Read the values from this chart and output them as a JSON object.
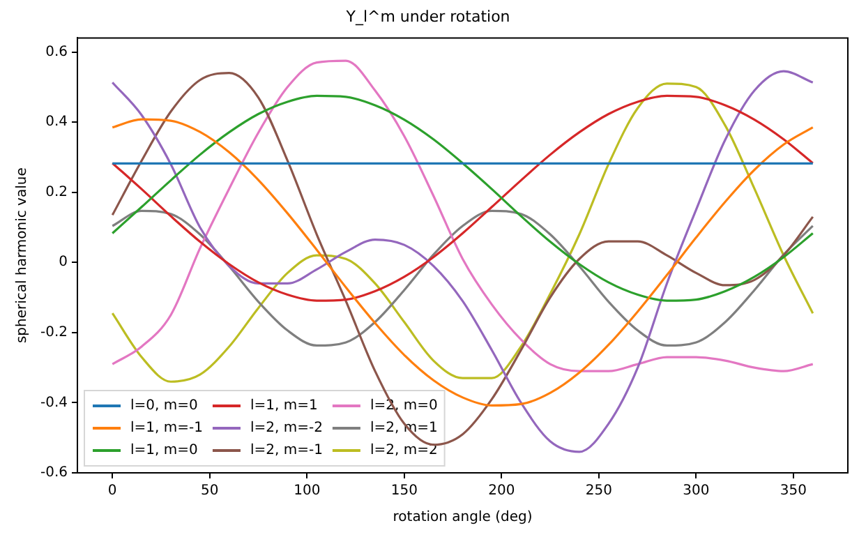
{
  "chart_data": {
    "type": "line",
    "title": "Y_l^m under rotation",
    "xlabel": "rotation angle (deg)",
    "ylabel": "spherical harmonic value",
    "x": [
      0,
      15,
      30,
      45,
      60,
      75,
      90,
      105,
      120,
      135,
      150,
      165,
      180,
      195,
      210,
      225,
      240,
      255,
      270,
      285,
      300,
      315,
      330,
      345,
      360
    ],
    "series": [
      {
        "name": "l=0, m=0",
        "color": "#1f77b4",
        "values": [
          0.282,
          0.282,
          0.282,
          0.282,
          0.282,
          0.282,
          0.282,
          0.282,
          0.282,
          0.282,
          0.282,
          0.282,
          0.282,
          0.282,
          0.282,
          0.282,
          0.282,
          0.282,
          0.282,
          0.282,
          0.282,
          0.282,
          0.282,
          0.282,
          0.282
        ]
      },
      {
        "name": "l=1, m=-1",
        "color": "#ff7f0e",
        "values": [
          0.385,
          0.408,
          0.404,
          0.372,
          0.314,
          0.235,
          0.14,
          0.036,
          -0.071,
          -0.173,
          -0.264,
          -0.336,
          -0.385,
          -0.408,
          -0.404,
          -0.372,
          -0.314,
          -0.235,
          -0.14,
          -0.036,
          0.071,
          0.173,
          0.264,
          0.336,
          0.385
        ]
      },
      {
        "name": "l=1, m=0",
        "color": "#2ca02c",
        "values": [
          0.083,
          0.158,
          0.234,
          0.307,
          0.371,
          0.423,
          0.458,
          0.475,
          0.472,
          0.448,
          0.407,
          0.351,
          0.283,
          0.209,
          0.132,
          0.059,
          -0.005,
          -0.057,
          -0.092,
          -0.109,
          -0.106,
          -0.082,
          -0.041,
          0.015,
          0.083
        ]
      },
      {
        "name": "l=1, m=1",
        "color": "#d62728",
        "values": [
          0.283,
          0.209,
          0.132,
          0.059,
          -0.005,
          -0.057,
          -0.092,
          -0.109,
          -0.106,
          -0.082,
          -0.041,
          0.015,
          0.083,
          0.158,
          0.234,
          0.307,
          0.371,
          0.423,
          0.458,
          0.475,
          0.472,
          0.448,
          0.407,
          0.351,
          0.283
        ]
      },
      {
        "name": "l=2, m=-2",
        "color": "#9467bd",
        "values": [
          0.513,
          0.42,
          0.28,
          0.1,
          -0.01,
          -0.06,
          -0.06,
          -0.02,
          0.03,
          0.065,
          0.05,
          -0.01,
          -0.11,
          -0.25,
          -0.4,
          -0.51,
          -0.54,
          -0.46,
          -0.3,
          -0.06,
          0.15,
          0.35,
          0.49,
          0.545,
          0.513
        ]
      },
      {
        "name": "l=2, m=-1",
        "color": "#8c564b",
        "values": [
          0.135,
          0.29,
          0.43,
          0.52,
          0.54,
          0.47,
          0.29,
          0.08,
          -0.11,
          -0.31,
          -0.46,
          -0.52,
          -0.49,
          -0.39,
          -0.25,
          -0.1,
          0.01,
          0.06,
          0.06,
          0.02,
          -0.03,
          -0.065,
          -0.05,
          0.02,
          0.13
        ]
      },
      {
        "name": "l=2, m=0",
        "color": "#e377c2",
        "values": [
          -0.29,
          -0.24,
          -0.15,
          0.04,
          0.21,
          0.37,
          0.5,
          0.57,
          0.575,
          0.49,
          0.36,
          0.19,
          0.01,
          -0.12,
          -0.22,
          -0.29,
          -0.31,
          -0.31,
          -0.29,
          -0.27,
          -0.27,
          -0.28,
          -0.3,
          -0.31,
          -0.29
        ]
      },
      {
        "name": "l=2, m=1",
        "color": "#7f7f7f",
        "values": [
          0.104,
          0.147,
          0.138,
          0.08,
          -0.011,
          -0.112,
          -0.194,
          -0.237,
          -0.228,
          -0.17,
          -0.079,
          0.022,
          0.104,
          0.147,
          0.138,
          0.08,
          -0.011,
          -0.112,
          -0.194,
          -0.237,
          -0.228,
          -0.17,
          -0.079,
          0.022,
          0.104
        ]
      },
      {
        "name": "l=2, m=2",
        "color": "#bcbd22",
        "values": [
          -0.145,
          -0.27,
          -0.34,
          -0.32,
          -0.24,
          -0.13,
          -0.03,
          0.02,
          0.01,
          -0.06,
          -0.17,
          -0.28,
          -0.33,
          -0.33,
          -0.24,
          -0.09,
          0.08,
          0.28,
          0.44,
          0.51,
          0.5,
          0.39,
          0.21,
          0.02,
          -0.145
        ]
      }
    ],
    "xlim": [
      -18,
      378
    ],
    "xticks": [
      0,
      50,
      100,
      150,
      200,
      250,
      300,
      350
    ],
    "ylim": [
      -0.6,
      0.64
    ],
    "yticks": [
      -0.6,
      -0.4,
      -0.2,
      0.0,
      0.2,
      0.4,
      0.6
    ],
    "grid": false,
    "legend": "bottom left",
    "marker": "none",
    "line_style": "solid"
  }
}
